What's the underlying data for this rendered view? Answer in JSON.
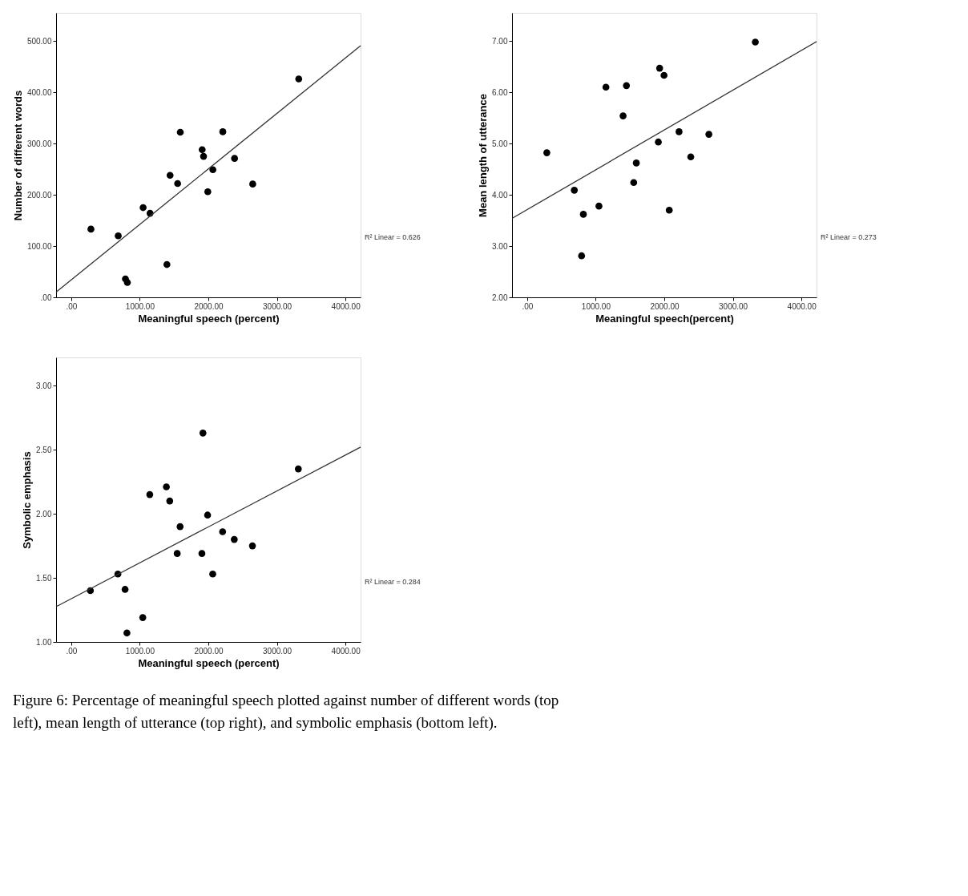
{
  "chart_data": [
    {
      "type": "scatter",
      "xlabel": "Meaningful speech (percent)",
      "ylabel": "Number of different words",
      "grid": false,
      "xlim": [
        -220,
        4220
      ],
      "ylim": [
        0,
        555
      ],
      "xticks": [
        {
          "value": 0,
          "label": ".00"
        },
        {
          "value": 1000,
          "label": "1000.00"
        },
        {
          "value": 2000,
          "label": "2000.00"
        },
        {
          "value": 3000,
          "label": "3000.00"
        },
        {
          "value": 4000,
          "label": "4000.00"
        }
      ],
      "yticks": [
        {
          "value": 0,
          "label": ".00"
        },
        {
          "value": 100,
          "label": "100.00"
        },
        {
          "value": 200,
          "label": "200.00"
        },
        {
          "value": 300,
          "label": "300.00"
        },
        {
          "value": 400,
          "label": "400.00"
        },
        {
          "value": 500,
          "label": "500.00"
        }
      ],
      "series": [
        {
          "type": "scatter",
          "marker": "circle",
          "color": "#000000",
          "x": [
            288,
            686,
            791,
            819,
            1049,
            1150,
            1396,
            1442,
            1552,
            1591,
            1910,
            1930,
            1992,
            2066,
            2211,
            2382,
            2647,
            3318
          ],
          "values": [
            133,
            120,
            36,
            29,
            175,
            164,
            64,
            238,
            222,
            322,
            288,
            275,
            206,
            249,
            323,
            271,
            221,
            426
          ]
        },
        {
          "type": "line",
          "color": "#333333",
          "x": [
            -220,
            4220
          ],
          "values": [
            10,
            491
          ]
        }
      ],
      "annotations": [
        "R² Linear = 0.626"
      ]
    },
    {
      "type": "scatter",
      "xlabel": "Meaningful speech(percent)",
      "ylabel": "Mean length of utterance",
      "grid": false,
      "xlim": [
        -220,
        4220
      ],
      "ylim": [
        2,
        7.55
      ],
      "xticks": [
        {
          "value": 0,
          "label": ".00"
        },
        {
          "value": 1000,
          "label": "1000.00"
        },
        {
          "value": 2000,
          "label": "2000.00"
        },
        {
          "value": 3000,
          "label": "3000.00"
        },
        {
          "value": 4000,
          "label": "4000.00"
        }
      ],
      "yticks": [
        {
          "value": 2,
          "label": "2.00"
        },
        {
          "value": 3,
          "label": "3.00"
        },
        {
          "value": 4,
          "label": "4.00"
        },
        {
          "value": 5,
          "label": "5.00"
        },
        {
          "value": 6,
          "label": "6.00"
        },
        {
          "value": 7,
          "label": "7.00"
        }
      ],
      "series": [
        {
          "type": "scatter",
          "marker": "circle",
          "color": "#000000",
          "x": [
            287,
            688,
            794,
            820,
            1047,
            1149,
            1399,
            1448,
            1554,
            1592,
            1913,
            1932,
            1996,
            2072,
            2215,
            2386,
            2650,
            3327
          ],
          "values": [
            4.82,
            4.09,
            2.81,
            3.62,
            3.78,
            6.1,
            5.54,
            6.13,
            4.24,
            4.62,
            5.03,
            6.47,
            6.33,
            3.7,
            5.23,
            4.74,
            5.18,
            6.98
          ]
        },
        {
          "type": "line",
          "color": "#333333",
          "x": [
            -220,
            4220
          ],
          "values": [
            3.54,
            6.99
          ]
        }
      ],
      "annotations": [
        "R² Linear = 0.273"
      ]
    },
    {
      "type": "scatter",
      "xlabel": "Meaningful speech (percent)",
      "ylabel": "Symbolic emphasis",
      "grid": false,
      "xlim": [
        -220,
        4220
      ],
      "ylim": [
        1,
        3.22
      ],
      "xticks": [
        {
          "value": 0,
          "label": ".00"
        },
        {
          "value": 1000,
          "label": "1000.00"
        },
        {
          "value": 2000,
          "label": "2000.00"
        },
        {
          "value": 3000,
          "label": "3000.00"
        },
        {
          "value": 4000,
          "label": "4000.00"
        }
      ],
      "yticks": [
        {
          "value": 1,
          "label": "1.00"
        },
        {
          "value": 1.5,
          "label": "1.50"
        },
        {
          "value": 2,
          "label": "2.00"
        },
        {
          "value": 2.5,
          "label": "2.50"
        },
        {
          "value": 3,
          "label": "3.00"
        }
      ],
      "series": [
        {
          "type": "scatter",
          "marker": "circle",
          "color": "#000000",
          "x": [
            280,
            681,
            786,
            813,
            1044,
            1146,
            1388,
            1437,
            1546,
            1588,
            1906,
            1921,
            1989,
            2064,
            2208,
            2378,
            2643,
            3312
          ],
          "values": [
            1.4,
            1.53,
            1.41,
            1.07,
            1.19,
            2.15,
            2.21,
            2.1,
            1.69,
            1.9,
            1.69,
            2.63,
            1.99,
            1.53,
            1.86,
            1.8,
            1.75,
            2.35
          ]
        },
        {
          "type": "line",
          "color": "#333333",
          "x": [
            -220,
            4220
          ],
          "values": [
            1.275,
            2.52
          ]
        }
      ],
      "annotations": [
        "R² Linear = 0.284",
        "Figure 6: Percentage of meaningful speech plotted against number of different words (top left), mean length of utterance (top right), and symbolic emphasis (bottom left)."
      ]
    }
  ]
}
